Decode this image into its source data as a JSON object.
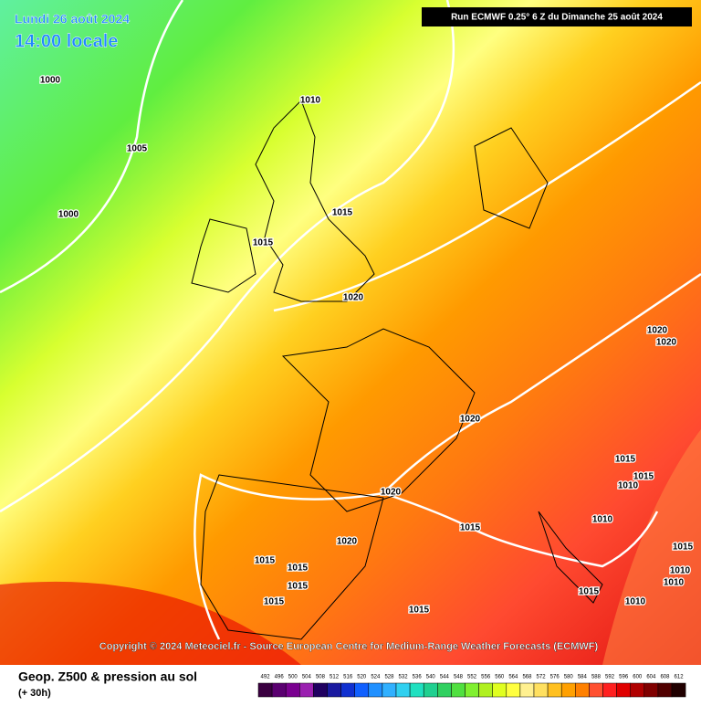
{
  "header": {
    "date": "Lundi 26 août 2024",
    "time": "14:00 locale",
    "run": "Run ECMWF 0.25° 6 Z du Dimanche 25 août 2024"
  },
  "isobar_labels": [
    "1000",
    "1005",
    "1000",
    "1010",
    "1015",
    "1015",
    "1020",
    "1020",
    "1020",
    "1020",
    "1015",
    "1015",
    "1010",
    "1020",
    "1015",
    "1010",
    "1020",
    "1015",
    "1015",
    "1015",
    "1015",
    "1015",
    "1015",
    "1010",
    "1015",
    "1010",
    "1010"
  ],
  "copyright": "Copyright © 2024 Meteociel.fr - Source European Centre for Medium-Range Weather Forecasts (ECMWF)",
  "footer": {
    "title": "Geop. Z500 & pression au sol",
    "lead": "(+ 30h)"
  },
  "scale": {
    "labels": [
      492,
      496,
      500,
      504,
      508,
      512,
      516,
      520,
      524,
      528,
      532,
      536,
      540,
      544,
      548,
      552,
      556,
      560,
      564,
      568,
      572,
      576,
      580,
      584,
      588,
      592,
      596,
      600,
      604,
      608,
      612
    ],
    "colors": [
      "#3a0040",
      "#5a0070",
      "#7a0090",
      "#9a20b0",
      "#200060",
      "#1a1aa0",
      "#1030d0",
      "#1060ff",
      "#2090ff",
      "#30b0ff",
      "#30d0f0",
      "#20e0c0",
      "#20d090",
      "#30d060",
      "#50e040",
      "#80f030",
      "#b0f020",
      "#e0ff20",
      "#ffff40",
      "#fff090",
      "#ffe060",
      "#ffc020",
      "#ffa000",
      "#ff8000",
      "#ff5030",
      "#ff2020",
      "#e00000",
      "#b00000",
      "#800000",
      "#500000",
      "#200000"
    ]
  }
}
